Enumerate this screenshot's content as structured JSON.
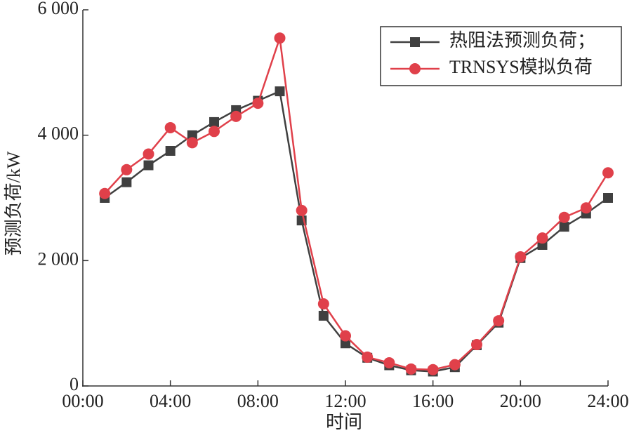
{
  "chart_data": {
    "type": "line",
    "xlabel": "时间",
    "ylabel": "预测负荷/kW",
    "x": [
      1,
      2,
      3,
      4,
      5,
      6,
      7,
      8,
      9,
      10,
      11,
      12,
      13,
      14,
      15,
      16,
      17,
      18,
      19,
      20,
      21,
      22,
      23,
      24
    ],
    "series": [
      {
        "name": "热阻法预测负荷；",
        "color": "#404040",
        "marker": "square",
        "values": [
          3000,
          3250,
          3520,
          3750,
          4000,
          4210,
          4400,
          4550,
          4700,
          2640,
          1120,
          680,
          450,
          330,
          250,
          230,
          300,
          650,
          1010,
          2040,
          2250,
          2540,
          2750,
          3000
        ]
      },
      {
        "name": "TRNSYS模拟负荷",
        "color": "#e0404a",
        "marker": "circle",
        "values": [
          3070,
          3450,
          3700,
          4120,
          3880,
          4060,
          4300,
          4510,
          5550,
          2800,
          1310,
          800,
          460,
          370,
          270,
          260,
          340,
          660,
          1040,
          2060,
          2360,
          2690,
          2840,
          3400
        ]
      }
    ],
    "xlim": [
      0,
      24
    ],
    "xticks": [
      {
        "value": 0,
        "label": "00:00"
      },
      {
        "value": 4,
        "label": "04:00"
      },
      {
        "value": 8,
        "label": "08:00"
      },
      {
        "value": 12,
        "label": "12:00"
      },
      {
        "value": 16,
        "label": "16:00"
      },
      {
        "value": 20,
        "label": "20:00"
      },
      {
        "value": 24,
        "label": "24:00"
      }
    ],
    "ylim": [
      0,
      6000
    ],
    "yticks": [
      0,
      {
        "value": 2000,
        "label": "2 000"
      },
      {
        "value": 4000,
        "label": "4 000"
      },
      {
        "value": 6000,
        "label": "6 000"
      }
    ],
    "legend": "upper right"
  }
}
